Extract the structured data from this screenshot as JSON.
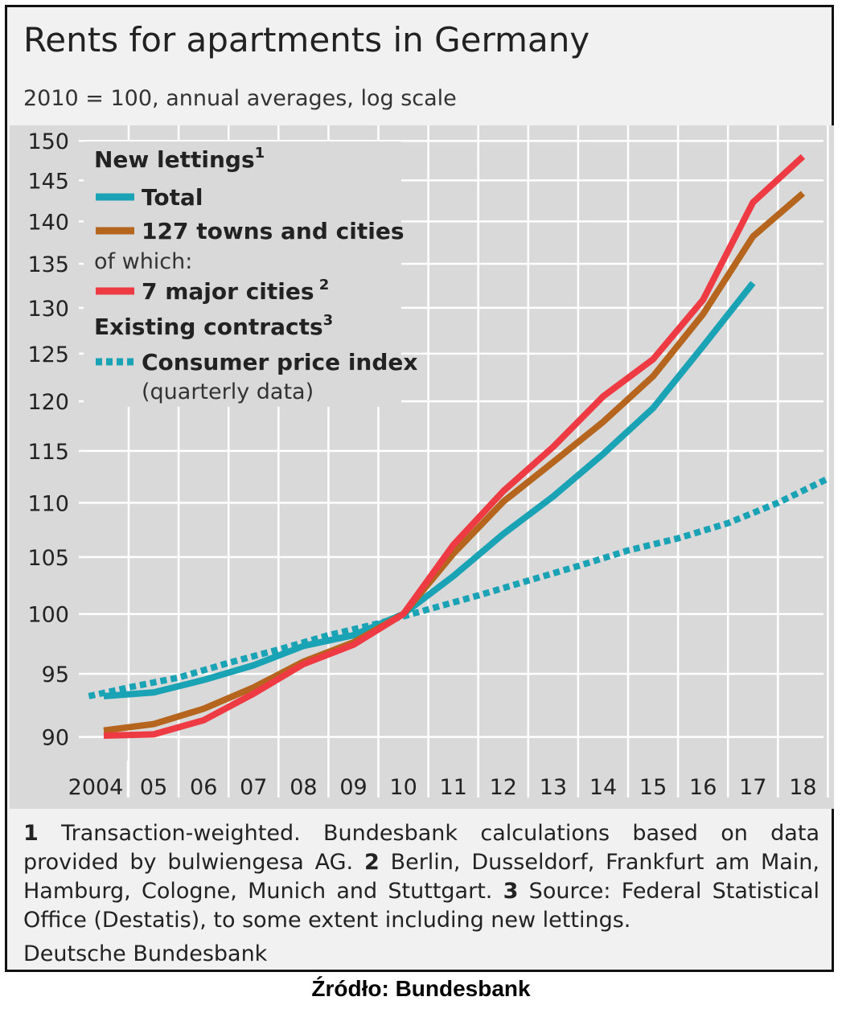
{
  "chart_data": {
    "type": "line",
    "title": "Rents for apartments in Germany",
    "subtitle": "2010 = 100, annual averages, log scale",
    "y_scale": "log",
    "ylim": [
      88.5,
      152
    ],
    "y_ticks": [
      90,
      95,
      100,
      105,
      110,
      115,
      120,
      125,
      130,
      135,
      140,
      145,
      150
    ],
    "x_tick_labels": [
      "2004",
      "05",
      "06",
      "07",
      "08",
      "09",
      "10",
      "11",
      "12",
      "13",
      "14",
      "15",
      "16",
      "17",
      "18"
    ],
    "legend": {
      "header_new": "New lettings",
      "header_new_sup": "1",
      "total": "Total",
      "towns": "127 towns and cities",
      "of_which": "of which:",
      "major": "7 major cities",
      "major_sup": "2",
      "header_existing": "Existing contracts",
      "header_existing_sup": "3",
      "cpi": "Consumer price index",
      "cpi_note": "(quarterly data)"
    },
    "series": [
      {
        "name": "Total",
        "color": "#1aa3b5",
        "style": "solid",
        "x": [
          2004,
          2005,
          2006,
          2007,
          2008,
          2009,
          2010,
          2011,
          2012,
          2013,
          2014,
          2015,
          2016,
          2017
        ],
        "values": [
          93.2,
          93.5,
          94.5,
          95.7,
          97.3,
          98.2,
          100.0,
          103.3,
          107.1,
          110.6,
          114.7,
          119.3,
          125.8,
          132.8
        ]
      },
      {
        "name": "127 towns and cities",
        "color": "#b5651d",
        "style": "solid",
        "x": [
          2004,
          2005,
          2006,
          2007,
          2008,
          2009,
          2010,
          2011,
          2012,
          2013,
          2014,
          2015,
          2016,
          2017,
          2018
        ],
        "values": [
          90.5,
          91.0,
          92.2,
          93.9,
          96.0,
          97.6,
          100.0,
          105.3,
          110.1,
          113.9,
          117.9,
          122.6,
          129.3,
          138.2,
          143.4
        ]
      },
      {
        "name": "7 major cities",
        "color": "#ee3b43",
        "style": "solid",
        "x": [
          2004,
          2005,
          2006,
          2007,
          2008,
          2009,
          2010,
          2011,
          2012,
          2013,
          2014,
          2015,
          2016,
          2017,
          2018
        ],
        "values": [
          90.1,
          90.2,
          91.3,
          93.4,
          95.8,
          97.4,
          100.0,
          106.1,
          111.1,
          115.4,
          120.5,
          124.4,
          130.9,
          142.3,
          148.0
        ]
      },
      {
        "name": "Consumer price index",
        "color": "#1aa3b5",
        "style": "dotted",
        "x": [
          2003.7,
          2004.5,
          2005.5,
          2006.5,
          2007.5,
          2008.5,
          2009.5,
          2010.5,
          2011.5,
          2012.5,
          2013.5,
          2014.5,
          2015.5,
          2016.5,
          2017.5,
          2018.5
        ],
        "values": [
          93.2,
          93.9,
          94.7,
          95.9,
          97.0,
          98.2,
          99.2,
          100.4,
          101.6,
          102.9,
          104.2,
          105.6,
          106.7,
          108.1,
          110.0,
          112.3
        ]
      }
    ],
    "footnotes": {
      "n1": "1",
      "t1": " Transaction-weighted. Bundesbank calculations based on data provided by bulwiengesa AG. ",
      "n2": "2",
      "t2": " Berlin, Dusseldorf, Frankfurt am Main, Hamburg, Cologne, Munich and Stuttgart. ",
      "n3": "3",
      "t3": " Source: Federal Statistical Office (Destatis), to some extent including new lettings."
    },
    "organization": "Deutsche Bundesbank"
  },
  "caption": "Źródło: Bundesbank"
}
